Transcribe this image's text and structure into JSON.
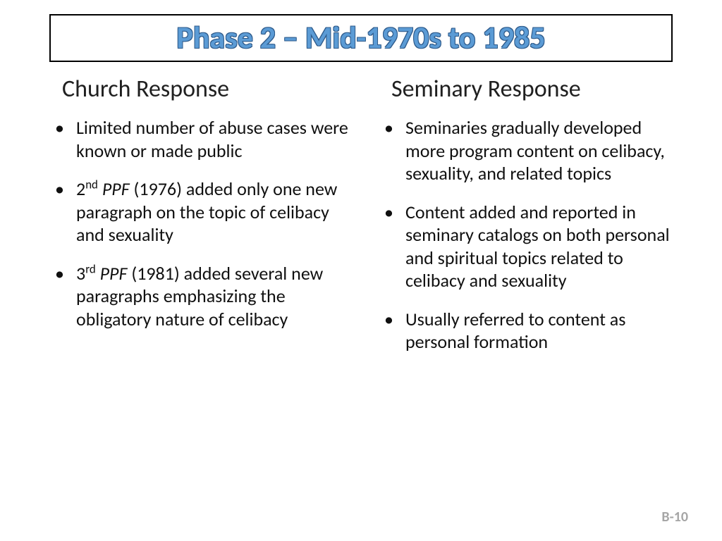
{
  "title": "Phase 2 – Mid-1970s to 1985",
  "left": {
    "heading": "Church Response",
    "bullets": [
      {
        "html": "Limited number of abuse cases were known or made public"
      },
      {
        "html": "2<span class='sup'>nd</span> <span class='ital'>PPF</span> (1976) added only one new paragraph on the topic of celibacy and sexuality"
      },
      {
        "html": "3<span class='sup'>rd</span> <span class='ital'>PPF</span> (1981) added several new paragraphs emphasizing the obligatory nature of celibacy"
      }
    ]
  },
  "right": {
    "heading": "Seminary Response",
    "bullets": [
      {
        "html": "Seminaries gradually developed more program content on celibacy, sexuality, and related topics"
      },
      {
        "html": "Content added and reported in seminary catalogs on both personal and spiritual topics related to celibacy and sexuality"
      },
      {
        "html": "Usually referred to content as personal formation"
      }
    ]
  },
  "page_number": "B-10",
  "colors": {
    "title_fill": "#5b9bd5",
    "title_outline": "#2e5a8a",
    "text": "#101010",
    "pagenum": "#a6a6a6",
    "border": "#000000",
    "background": "#ffffff"
  },
  "fonts": {
    "title_pt": 44,
    "heading_pt": 34,
    "body_pt": 26,
    "pagenum_pt": 20,
    "family": "Calibri"
  }
}
